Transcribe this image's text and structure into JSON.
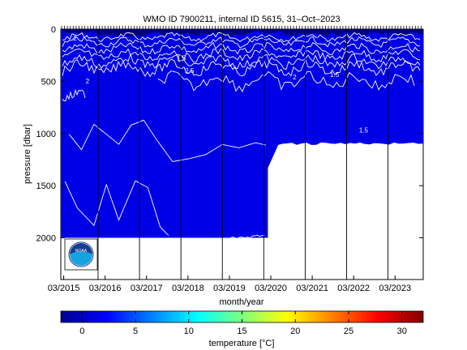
{
  "chart_data": {
    "type": "heatmap",
    "title": "WMO ID 7900211, internal ID 5615, 31–Oct–2023",
    "xlabel": "month/year",
    "ylabel": "pressure [dbar]",
    "colorbar_label": "temperature [°C]",
    "x_tick_labels": [
      "03/2015",
      "03/2016",
      "03/2017",
      "03/2018",
      "03/2019",
      "03/2020",
      "03/2021",
      "03/2022",
      "03/2023"
    ],
    "x_ticks": [
      2015.17,
      2016.17,
      2017.17,
      2018.17,
      2019.17,
      2020.17,
      2021.17,
      2022.17,
      2023.17
    ],
    "xlim": [
      2015.1,
      2023.85
    ],
    "y_ticks": [
      0,
      500,
      1000,
      1500,
      2000
    ],
    "y_tick_labels": [
      "0",
      "500",
      "1000",
      "1500",
      "2000"
    ],
    "ylim": [
      2400,
      0
    ],
    "y_reversed": true,
    "colorbar_ticks": [
      0,
      5,
      10,
      15,
      20,
      25,
      30
    ],
    "colorbar_range": [
      -2,
      32
    ],
    "colormap": "jet",
    "dominant_value_range": [
      1,
      4
    ],
    "contour_levels": [
      1.5,
      2,
      2.5
    ],
    "contour_labels": [
      "2",
      "2",
      "1.5",
      "2.5",
      "2",
      "1.5",
      "1.5"
    ],
    "profile_depth_max": [
      {
        "x": 2015.1,
        "max_pressure": 2000
      },
      {
        "x": 2020.1,
        "max_pressure": 2000
      },
      {
        "x": 2020.1,
        "max_pressure": 1330
      },
      {
        "x": 2020.35,
        "max_pressure": 1110
      },
      {
        "x": 2023.85,
        "max_pressure": 1080
      }
    ],
    "vertical_lines_at_year_start": [
      2016.0,
      2017.0,
      2018.0,
      2019.0,
      2020.0,
      2021.0,
      2022.0,
      2023.0
    ],
    "logo": "noaa-logo",
    "grid": false
  },
  "colors": {
    "field": "#0000e6",
    "surface_dark": "#00007a",
    "contour": "#ffffff",
    "background": "#ffffff"
  }
}
